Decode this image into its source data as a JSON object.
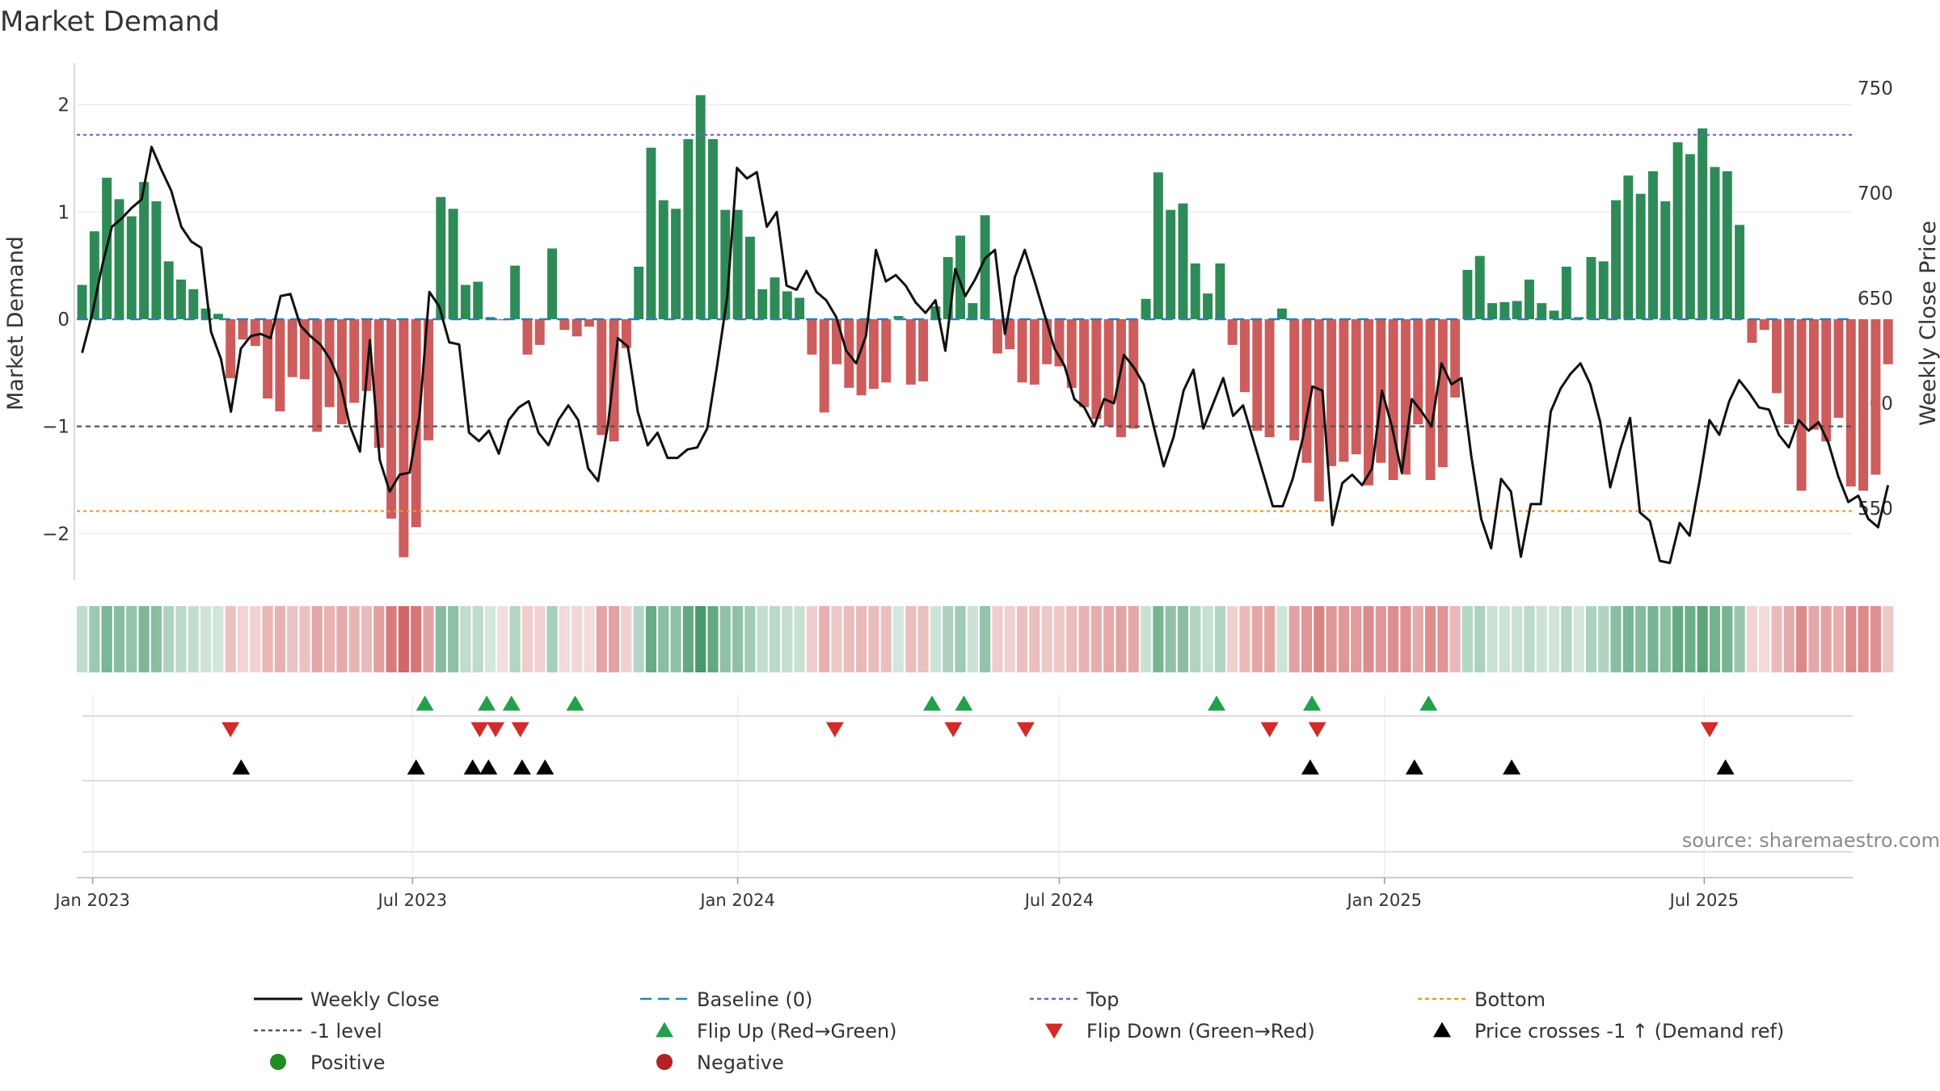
{
  "chart_data": {
    "type": "bar",
    "title": "Market Demand",
    "ylabel": "Market Demand",
    "y2label": "Weekly Close Price",
    "ylim": [
      -2.45,
      2.45
    ],
    "y2lim": [
      515,
      765
    ],
    "yticks": [
      2,
      1,
      0,
      -1,
      -2
    ],
    "ytick_labels": [
      "2",
      "1",
      "0",
      "−1",
      "−2"
    ],
    "y2ticks": [
      750,
      700,
      650,
      600,
      550
    ],
    "xlim": [
      "2022-12-23",
      "2025-09-23"
    ],
    "xticks": [
      {
        "date": "2023-01-01",
        "label": "Jan 2023"
      },
      {
        "date": "2023-07-01",
        "label": "Jul 2023"
      },
      {
        "date": "2024-01-01",
        "label": "Jan 2024"
      },
      {
        "date": "2024-07-01",
        "label": "Jul 2024"
      },
      {
        "date": "2025-01-01",
        "label": "Jan 2025"
      },
      {
        "date": "2025-07-01",
        "label": "Jul 2025"
      }
    ],
    "start_date": "2022-12-26",
    "demand": [
      0.32,
      0.82,
      1.32,
      1.12,
      0.96,
      1.28,
      1.1,
      0.54,
      0.37,
      0.28,
      0.1,
      0.05,
      -0.55,
      -0.19,
      -0.25,
      -0.74,
      -0.86,
      -0.54,
      -0.56,
      -1.05,
      -0.82,
      -0.98,
      -0.78,
      -0.67,
      -1.2,
      -1.86,
      -2.22,
      -1.94,
      -1.13,
      1.14,
      1.03,
      0.32,
      0.35,
      0.02,
      -0.01,
      0.5,
      -0.33,
      -0.24,
      0.66,
      -0.1,
      -0.16,
      -0.07,
      -1.08,
      -1.14,
      -0.27,
      0.49,
      1.6,
      1.11,
      1.03,
      1.68,
      2.09,
      1.68,
      1.02,
      1.02,
      0.77,
      0.28,
      0.39,
      0.26,
      0.2,
      -0.33,
      -0.87,
      -0.42,
      -0.64,
      -0.71,
      -0.65,
      -0.59,
      0.03,
      -0.61,
      -0.58,
      0.12,
      0.58,
      0.78,
      0.15,
      0.97,
      -0.32,
      -0.28,
      -0.59,
      -0.61,
      -0.42,
      -0.44,
      -0.64,
      -0.82,
      -0.93,
      -1.0,
      -1.1,
      -1.02,
      0.19,
      1.37,
      1.02,
      1.08,
      0.52,
      0.24,
      0.52,
      -0.24,
      -0.68,
      -1.04,
      -1.1,
      0.1,
      -1.13,
      -1.34,
      -1.7,
      -1.37,
      -1.33,
      -1.26,
      -1.55,
      -1.34,
      -1.5,
      -1.45,
      -0.98,
      -1.5,
      -1.38,
      -0.73,
      0.46,
      0.59,
      0.15,
      0.16,
      0.17,
      0.37,
      0.15,
      0.08,
      0.49,
      0.02,
      0.58,
      0.54,
      1.11,
      1.34,
      1.17,
      1.38,
      1.1,
      1.65,
      1.54,
      1.78,
      1.42,
      1.38,
      0.88,
      -0.22,
      -0.1,
      -0.69,
      -0.98,
      -1.6,
      -1.03,
      -1.14,
      -0.92,
      -1.56,
      -1.6,
      -1.45,
      -0.42
    ],
    "weekly_close": [
      624,
      642,
      665,
      684,
      688,
      693,
      697,
      722,
      711,
      701,
      684,
      677,
      674,
      634,
      621,
      596,
      626,
      632,
      633,
      631,
      651,
      652,
      637,
      632,
      628,
      621,
      610,
      589,
      577,
      630,
      573,
      558,
      566,
      567,
      594,
      653,
      646,
      629,
      628,
      586,
      582,
      587,
      576,
      592,
      598,
      601,
      586,
      580,
      592,
      599,
      592,
      569,
      563,
      590,
      631,
      627,
      596,
      580,
      586,
      574,
      574,
      578,
      579,
      588,
      618,
      650,
      712,
      707,
      710,
      684,
      691,
      656,
      654,
      663,
      653,
      649,
      641,
      625,
      619,
      632,
      673,
      658,
      661,
      656,
      648,
      643,
      649,
      625,
      664,
      651,
      659,
      669,
      673,
      633,
      660,
      673,
      658,
      642,
      626,
      618,
      602,
      598,
      589,
      602,
      600,
      623,
      617,
      609,
      589,
      570,
      584,
      606,
      616,
      588,
      600,
      612,
      594,
      599,
      583,
      567,
      551,
      551,
      564,
      583,
      608,
      606,
      542,
      562,
      566,
      561,
      569,
      606,
      589,
      567,
      602,
      596,
      589,
      619,
      609,
      612,
      575,
      545,
      531,
      564,
      558,
      527,
      552,
      552,
      596,
      607,
      614,
      619,
      609,
      591,
      560,
      578,
      593,
      548,
      544,
      525,
      524,
      543,
      537,
      563,
      592,
      585,
      601,
      611,
      605,
      598,
      597,
      585,
      579,
      592,
      587,
      591,
      581,
      565,
      553,
      556,
      545,
      541,
      561
    ],
    "levels": {
      "top": 1.72,
      "bottom": -1.79,
      "minus_one": -1.0,
      "baseline": 0
    },
    "heat_strip_values": [
      0.32,
      0.82,
      1.32,
      1.12,
      0.96,
      1.28,
      1.1,
      0.54,
      0.37,
      0.28,
      0.1,
      0.05,
      -0.55,
      -0.19,
      -0.25,
      -0.74,
      -0.86,
      -0.54,
      -0.56,
      -1.05,
      -0.82,
      -0.98,
      -0.78,
      -0.67,
      -1.2,
      -1.86,
      -2.22,
      -1.94,
      -1.13,
      1.14,
      1.03,
      0.32,
      0.35,
      0.02,
      -0.01,
      0.5,
      -0.33,
      -0.24,
      0.66,
      -0.1,
      -0.16,
      -0.07,
      -1.08,
      -1.14,
      -0.27,
      0.49,
      1.6,
      1.11,
      1.03,
      1.68,
      2.09,
      1.68,
      1.02,
      1.02,
      0.77,
      0.28,
      0.39,
      0.26,
      0.2,
      -0.33,
      -0.87,
      -0.42,
      -0.64,
      -0.71,
      -0.65,
      -0.59,
      0.03,
      -0.61,
      -0.58,
      0.12,
      0.58,
      0.78,
      0.15,
      0.97,
      -0.32,
      -0.28,
      -0.59,
      -0.61,
      -0.42,
      -0.44,
      -0.64,
      -0.82,
      -0.93,
      -1.0,
      -1.1,
      -1.02,
      0.19,
      1.37,
      1.02,
      1.08,
      0.52,
      0.24,
      0.52,
      -0.24,
      -0.68,
      -1.04,
      -1.1,
      0.1,
      -1.13,
      -1.34,
      -1.7,
      -1.37,
      -1.33,
      -1.26,
      -1.55,
      -1.34,
      -1.5,
      -1.45,
      -0.98,
      -1.5,
      -1.38,
      -0.73,
      0.46,
      0.59,
      0.15,
      0.16,
      0.17,
      0.37,
      0.15,
      0.08,
      0.49,
      0.02,
      0.58,
      0.54,
      1.11,
      1.34,
      1.17,
      1.38,
      1.1,
      1.65,
      1.54,
      1.78,
      1.42,
      1.38,
      0.88,
      -0.22,
      -0.1,
      -0.69,
      -0.98,
      -1.6,
      -1.03,
      -1.14,
      -0.92,
      -1.56,
      -1.6,
      -1.45,
      -0.42
    ],
    "flip_up_dates": [
      "2023-07-08",
      "2023-08-12",
      "2023-08-26",
      "2023-10-01",
      "2024-04-20",
      "2024-05-08",
      "2024-09-28",
      "2024-11-21",
      "2025-01-26"
    ],
    "flip_down_dates": [
      "2023-03-20",
      "2023-08-08",
      "2023-08-17",
      "2023-08-31",
      "2024-02-25",
      "2024-05-02",
      "2024-06-12",
      "2024-10-28",
      "2024-11-24",
      "2025-07-04"
    ],
    "price_cross_dates": [
      "2023-03-26",
      "2023-07-03",
      "2023-08-04",
      "2023-08-13",
      "2023-09-01",
      "2023-09-14",
      "2024-11-20",
      "2025-01-18",
      "2025-03-14",
      "2025-07-13"
    ],
    "colors": {
      "positive_bar": "#2e8b57",
      "negative_bar": "#cd5c5c",
      "close_line": "#111111",
      "baseline": "#2a7fbf",
      "top": "#6a68c8",
      "bottom": "#e69a30",
      "minus_one": "#555555",
      "flip_up": "#22a04b",
      "flip_down": "#d42a2a",
      "cross": "#000000",
      "legend_positive": "#228b22",
      "legend_negative": "#b22222"
    },
    "legend": [
      {
        "label": "Weekly Close",
        "marker": "line-solid"
      },
      {
        "label": "Baseline (0)",
        "marker": "line-dashed"
      },
      {
        "label": "Top",
        "marker": "line-dotted"
      },
      {
        "label": "Bottom",
        "marker": "line-dotted"
      },
      {
        "label": "-1 level",
        "marker": "line-dotted"
      },
      {
        "label": "Flip Up (Red→Green)",
        "marker": "triangle-up"
      },
      {
        "label": "Flip Down (Green→Red)",
        "marker": "triangle-down"
      },
      {
        "label": "Price crosses -1 ↑ (Demand ref)",
        "marker": "triangle-up"
      },
      {
        "label": "Positive",
        "marker": "circle"
      },
      {
        "label": "Negative",
        "marker": "circle"
      }
    ],
    "source": "source: sharemaestro.com"
  }
}
